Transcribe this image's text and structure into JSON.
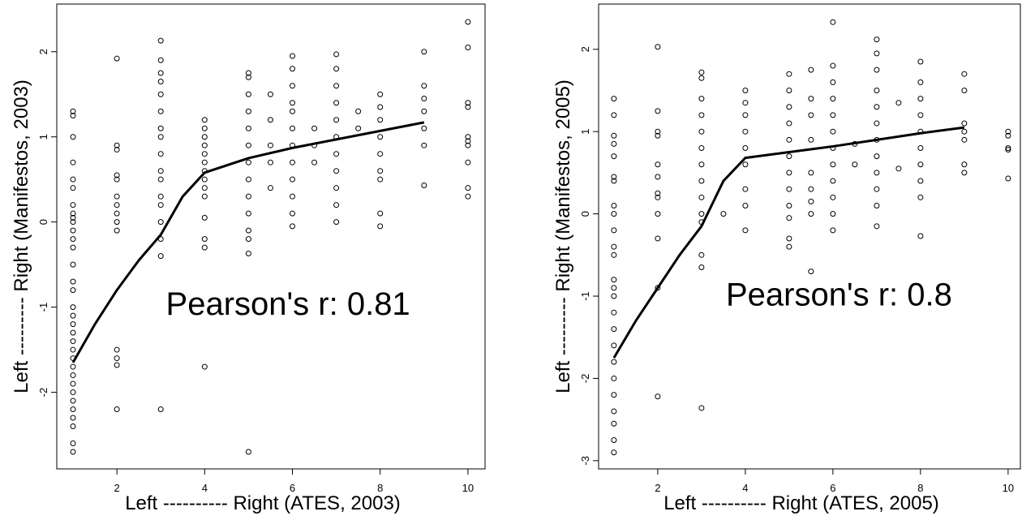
{
  "chart_data": [
    {
      "type": "scatter",
      "xlabel": "Left ---------- Right (ATES, 2003)",
      "ylabel": "Left --------- Right  (Manifestos, 2003)",
      "annotation": "Pearson's r: 0.81",
      "xlim": [
        0.63,
        10.39
      ],
      "ylim": [
        -2.9,
        2.56
      ],
      "xticks": [
        2,
        4,
        6,
        8,
        10
      ],
      "yticks": [
        -2,
        -1,
        0,
        1,
        2
      ],
      "color": "#000000",
      "points": [
        {
          "x": 1,
          "y": [
            1.3,
            1.25,
            1.0,
            0.7,
            0.5,
            0.4,
            0.2,
            0.1,
            0.05,
            0,
            -0.1,
            -0.2,
            -0.3,
            -0.5,
            -0.7,
            -0.8,
            -1.0,
            -1.1,
            -1.2,
            -1.3,
            -1.4,
            -1.5,
            -1.6,
            -1.7,
            -1.8,
            -1.9,
            -2.0,
            -2.1,
            -2.2,
            -2.3,
            -2.4,
            -2.6,
            -2.7
          ]
        },
        {
          "x": 2,
          "y": [
            1.92,
            0.9,
            0.85,
            0.55,
            0.5,
            0.3,
            0.2,
            0.1,
            0,
            -0.1,
            -1.5,
            -1.6,
            -1.68,
            -2.2
          ]
        },
        {
          "x": 3,
          "y": [
            2.13,
            1.9,
            1.75,
            1.65,
            1.5,
            1.3,
            1.1,
            1.0,
            0.8,
            0.6,
            0.5,
            0.3,
            0.2,
            0,
            -0.2,
            -0.4,
            -2.2
          ]
        },
        {
          "x": 4,
          "y": [
            1.2,
            1.1,
            1.0,
            0.9,
            0.8,
            0.7,
            0.6,
            0.5,
            0.4,
            0.3,
            0.05,
            -0.2,
            -0.3,
            -1.7
          ]
        },
        {
          "x": 5,
          "y": [
            1.75,
            1.7,
            1.5,
            1.3,
            1.1,
            0.9,
            0.7,
            0.5,
            0.3,
            0.1,
            -0.1,
            -0.2,
            -0.37,
            -2.7
          ]
        },
        {
          "x": 5.5,
          "y": [
            1.5,
            1.2,
            0.9,
            0.7,
            0.4
          ]
        },
        {
          "x": 6,
          "y": [
            1.95,
            1.8,
            1.6,
            1.4,
            1.3,
            1.1,
            0.9,
            0.7,
            0.5,
            0.3,
            0.1,
            -0.05
          ]
        },
        {
          "x": 6.5,
          "y": [
            1.1,
            0.9,
            0.7
          ]
        },
        {
          "x": 7,
          "y": [
            1.97,
            1.8,
            1.6,
            1.4,
            1.2,
            1.0,
            0.8,
            0.6,
            0.4,
            0.2,
            0
          ]
        },
        {
          "x": 7.5,
          "y": [
            1.3,
            1.1
          ]
        },
        {
          "x": 8,
          "y": [
            1.5,
            1.35,
            1.2,
            1.0,
            0.8,
            0.6,
            0.5,
            0.1,
            -0.05
          ]
        },
        {
          "x": 9,
          "y": [
            2.0,
            1.6,
            1.45,
            1.3,
            1.1,
            0.9,
            0.43
          ]
        },
        {
          "x": 10,
          "y": [
            2.35,
            2.05,
            1.4,
            1.35,
            1.0,
            0.95,
            0.9,
            0.7,
            0.4,
            0.3
          ]
        }
      ],
      "fit": {
        "x": [
          1,
          1.5,
          2,
          2.5,
          3,
          3.5,
          4,
          5,
          6,
          7,
          8,
          9
        ],
        "y": [
          -1.65,
          -1.2,
          -0.8,
          -0.45,
          -0.15,
          0.3,
          0.58,
          0.75,
          0.87,
          0.97,
          1.07,
          1.17
        ]
      }
    },
    {
      "type": "scatter",
      "xlabel": "Left ---------- Right (ATES, 2005)",
      "ylabel": "Left --------- Right  (Manifestos, 2005)",
      "annotation": "Pearson's r: 0.8",
      "xlim": [
        0.65,
        10.28
      ],
      "ylim": [
        -3.1,
        2.55
      ],
      "xticks": [
        2,
        4,
        6,
        8,
        10
      ],
      "yticks": [
        -3,
        -2,
        -1,
        0,
        1,
        2
      ],
      "color": "#000000",
      "points": [
        {
          "x": 1,
          "y": [
            1.4,
            1.2,
            0.95,
            0.85,
            0.7,
            0.45,
            0.4,
            0.1,
            0,
            -0.2,
            -0.4,
            -0.5,
            -0.8,
            -0.9,
            -1.0,
            -1.2,
            -1.4,
            -1.6,
            -1.8,
            -2.0,
            -2.2,
            -2.4,
            -2.55,
            -2.75,
            -2.9
          ]
        },
        {
          "x": 2,
          "y": [
            2.03,
            1.25,
            1.0,
            0.95,
            0.6,
            0.45,
            0.25,
            0.2,
            0,
            -0.3,
            -0.9,
            -2.22
          ]
        },
        {
          "x": 3,
          "y": [
            1.72,
            1.65,
            1.4,
            1.2,
            1.0,
            0.8,
            0.6,
            0.4,
            0.2,
            0,
            -0.1,
            -0.5,
            -0.65,
            -2.36
          ]
        },
        {
          "x": 3.5,
          "y": [
            0
          ]
        },
        {
          "x": 4,
          "y": [
            1.5,
            1.35,
            1.2,
            1.0,
            0.8,
            0.6,
            0.3,
            0.1,
            -0.2
          ]
        },
        {
          "x": 5,
          "y": [
            1.7,
            1.5,
            1.3,
            1.1,
            0.9,
            0.7,
            0.5,
            0.3,
            0.1,
            -0.05,
            -0.3,
            -0.4
          ]
        },
        {
          "x": 5.5,
          "y": [
            1.75,
            1.4,
            1.2,
            0.9,
            0.5,
            0.3,
            0.15,
            0,
            -0.7
          ]
        },
        {
          "x": 6,
          "y": [
            2.33,
            1.8,
            1.6,
            1.4,
            1.2,
            1.0,
            0.8,
            0.6,
            0.4,
            0.2,
            0,
            -0.2
          ]
        },
        {
          "x": 6.5,
          "y": [
            0.85,
            0.6
          ]
        },
        {
          "x": 7,
          "y": [
            2.12,
            1.95,
            1.75,
            1.5,
            1.3,
            1.1,
            0.9,
            0.7,
            0.5,
            0.3,
            0.1,
            -0.15
          ]
        },
        {
          "x": 7.5,
          "y": [
            1.35,
            0.55
          ]
        },
        {
          "x": 8,
          "y": [
            1.85,
            1.6,
            1.4,
            1.2,
            1.0,
            0.8,
            0.6,
            0.4,
            0.2,
            -0.27
          ]
        },
        {
          "x": 9,
          "y": [
            1.7,
            1.5,
            1.1,
            1.0,
            0.9,
            0.6,
            0.5
          ]
        },
        {
          "x": 10,
          "y": [
            1.0,
            0.95,
            0.8,
            0.78,
            0.43
          ]
        }
      ],
      "fit": {
        "x": [
          1,
          1.5,
          2,
          2.5,
          3,
          3.5,
          4,
          5,
          6,
          7,
          8,
          9
        ],
        "y": [
          -1.75,
          -1.3,
          -0.9,
          -0.5,
          -0.15,
          0.4,
          0.68,
          0.75,
          0.82,
          0.9,
          0.98,
          1.05
        ]
      }
    }
  ]
}
